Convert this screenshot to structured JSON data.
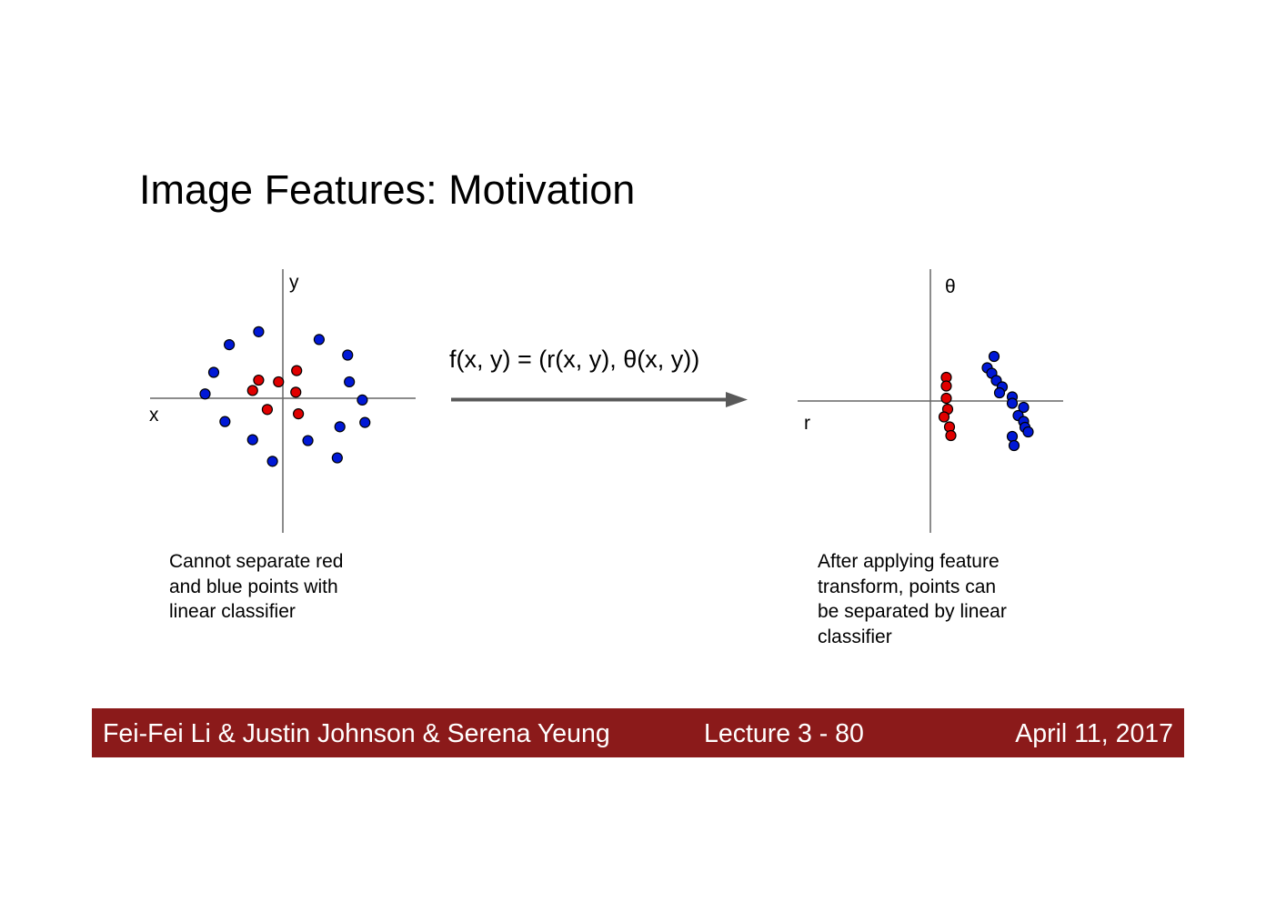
{
  "slide": {
    "title": "Image Features: Motivation",
    "mapping_label": "f(x, y) = (r(x, y), θ(x, y))"
  },
  "left_plot": {
    "x_label": "x",
    "y_label": "y",
    "caption_lines": [
      "Cannot separate red",
      "and blue points with",
      "linear classifier"
    ],
    "red_points": [
      [
        -0.28,
        0.21
      ],
      [
        -0.05,
        0.19
      ],
      [
        0.16,
        0.32
      ],
      [
        -0.35,
        0.09
      ],
      [
        0.15,
        0.07
      ],
      [
        -0.18,
        -0.13
      ],
      [
        0.18,
        -0.18
      ]
    ],
    "blue_points": [
      [
        -0.28,
        0.77
      ],
      [
        0.42,
        0.68
      ],
      [
        -0.62,
        0.62
      ],
      [
        0.75,
        0.5
      ],
      [
        -0.8,
        0.3
      ],
      [
        0.77,
        0.19
      ],
      [
        -0.9,
        0.05
      ],
      [
        0.92,
        -0.02
      ],
      [
        -0.67,
        -0.27
      ],
      [
        0.95,
        -0.28
      ],
      [
        0.66,
        -0.33
      ],
      [
        -0.35,
        -0.48
      ],
      [
        0.29,
        -0.49
      ],
      [
        -0.12,
        -0.73
      ],
      [
        0.63,
        -0.69
      ]
    ]
  },
  "right_plot": {
    "x_label": "r",
    "y_label": "θ",
    "red_points": [
      [
        0.35,
        0.52
      ],
      [
        0.35,
        0.33
      ],
      [
        0.35,
        0.06
      ],
      [
        0.38,
        -0.18
      ],
      [
        0.3,
        -0.35
      ],
      [
        0.42,
        -0.57
      ],
      [
        0.45,
        -0.76
      ]
    ],
    "blue_points": [
      [
        1.4,
        0.98
      ],
      [
        1.25,
        0.73
      ],
      [
        1.35,
        0.61
      ],
      [
        1.45,
        0.45
      ],
      [
        1.58,
        0.31
      ],
      [
        1.52,
        0.18
      ],
      [
        1.8,
        0.09
      ],
      [
        1.8,
        -0.05
      ],
      [
        2.05,
        -0.14
      ],
      [
        1.93,
        -0.32
      ],
      [
        2.05,
        -0.45
      ],
      [
        2.08,
        -0.58
      ],
      [
        2.15,
        -0.68
      ],
      [
        1.8,
        -0.78
      ],
      [
        1.84,
        -0.98
      ]
    ]
  },
  "right_caption_lines": [
    "After applying feature",
    "transform, points can",
    "be separated by linear",
    "classifier"
  ],
  "footer": {
    "authors": "Fei-Fei Li & Justin Johnson & Serena Yeung",
    "lecture": "Lecture 3 -   80",
    "date": "April 11, 2017"
  },
  "colors": {
    "red_point": "#e00000",
    "blue_point": "#0018d6",
    "axis": "#666666",
    "arrow": "#595959",
    "footer_bg": "#8b1a1a"
  }
}
